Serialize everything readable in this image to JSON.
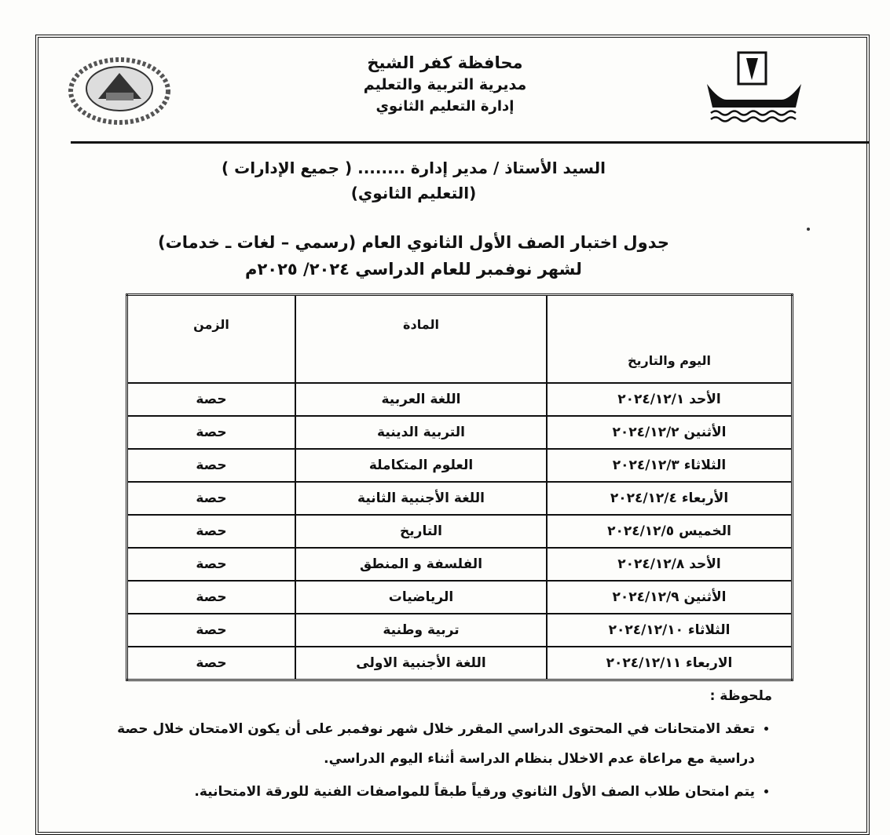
{
  "header": {
    "governorate": "محافظة كفر الشيخ",
    "directorate": "مديرية التربية والتعليم",
    "department": "إدارة التعليم الثانوي"
  },
  "address": {
    "line1": "السيد الأستاذ / مدير إدارة ........ ( جميع الإدارات )",
    "line2": "(التعليم الثانوي)"
  },
  "title": {
    "line1": "جدول اختبار الصف الأول الثانوي العام (رسمي – لغات ـ خدمات)",
    "line2": "لشهر نوفمبر للعام الدراسي ٢٠٢٤/ ٢٠٢٥م"
  },
  "table": {
    "headers": {
      "date": "اليوم والتاريخ",
      "subject": "المادة",
      "time": "الزمن"
    },
    "rows": [
      {
        "date": "الأحد ٢٠٢٤/١٢/١",
        "subject": "اللغة العربية",
        "time": "حصة"
      },
      {
        "date": "الأثنين ٢٠٢٤/١٢/٢",
        "subject": "التربية الدينية",
        "time": "حصة"
      },
      {
        "date": "الثلاثاء ٢٠٢٤/١٢/٣",
        "subject": "العلوم المتكاملة",
        "time": "حصة"
      },
      {
        "date": "الأربعاء ٢٠٢٤/١٢/٤",
        "subject": "اللغة الأجنبية الثانية",
        "time": "حصة"
      },
      {
        "date": "الخميس ٢٠٢٤/١٢/٥",
        "subject": "التاريخ",
        "time": "حصة"
      },
      {
        "date": "الأحد ٢٠٢٤/١٢/٨",
        "subject": "الفلسفة و المنطق",
        "time": "حصة"
      },
      {
        "date": "الأثنين ٢٠٢٤/١٢/٩",
        "subject": "الرياضيات",
        "time": "حصة"
      },
      {
        "date": "الثلاثاء ٢٠٢٤/١٢/١٠",
        "subject": "تربية وطنية",
        "time": "حصة"
      },
      {
        "date": "الاربعاء ٢٠٢٤/١٢/١١",
        "subject": "اللغة الأجنبية الاولى",
        "time": "حصة"
      }
    ]
  },
  "notes": {
    "title": "ملحوظة :",
    "items": [
      "تعقد الامتحانات في المحتوى الدراسي المقرر خلال شهر نوفمبر على أن يكون الامتحان خلال حصة دراسية مع مراعاة عدم الاخلال بنظام الدراسة أثناء اليوم الدراسي.",
      "يتم امتحان طلاب الصف الأول الثانوي ورقياً طبقاً للمواصفات الفنية للورقة الامتحانية."
    ]
  },
  "logos": {
    "left_text": "محافظة كفر الشيخ مديرية التربية والتعليم"
  }
}
